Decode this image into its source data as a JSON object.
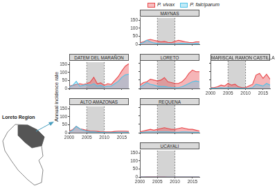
{
  "y_label": "Annual incidence rate",
  "map": {
    "label": "Loreto Region"
  },
  "chart_data": [
    {
      "type": "area",
      "title": "MAYNAS",
      "legend": "top",
      "tick_labels": "y",
      "grid": false,
      "x": [
        2000,
        2001,
        2002,
        2003,
        2004,
        2005,
        2006,
        2007,
        2008,
        2009,
        2010,
        2011,
        2012,
        2013,
        2014,
        2015,
        2016,
        2017
      ],
      "xlim": [
        2000,
        2017
      ],
      "xticks": [
        2000,
        2005,
        2010,
        2015
      ],
      "ylim": [
        0,
        165
      ],
      "yticks": [
        0,
        50,
        100,
        150
      ],
      "highlight": [
        2005,
        2010
      ],
      "series": [
        {
          "name": "P. vivax",
          "color": "#e8474a",
          "values": [
            10,
            15,
            25,
            30,
            25,
            20,
            15,
            18,
            12,
            10,
            18,
            25,
            20,
            15,
            12,
            10,
            15,
            15
          ]
        },
        {
          "name": "P. falciparum",
          "color": "#4fc3e8",
          "values": [
            5,
            10,
            25,
            15,
            8,
            5,
            3,
            3,
            2,
            2,
            3,
            5,
            6,
            5,
            4,
            3,
            5,
            4
          ]
        }
      ]
    },
    {
      "type": "area",
      "title": "DATEM DEL MARAÑON",
      "tick_labels": "y",
      "grid": false,
      "x": [
        2000,
        2001,
        2002,
        2003,
        2004,
        2005,
        2006,
        2007,
        2008,
        2009,
        2010,
        2011,
        2012,
        2013,
        2014,
        2015,
        2016,
        2017
      ],
      "xlim": [
        2000,
        2017
      ],
      "xticks": [
        2000,
        2005,
        2010,
        2015
      ],
      "ylim": [
        0,
        165
      ],
      "yticks": [
        0,
        50,
        100,
        150
      ],
      "highlight": [
        2005,
        2010
      ],
      "series": [
        {
          "name": "P. vivax",
          "color": "#e8474a",
          "values": [
            15,
            20,
            25,
            30,
            25,
            30,
            40,
            70,
            30,
            35,
            20,
            30,
            25,
            50,
            75,
            110,
            140,
            155
          ]
        },
        {
          "name": "P. falciparum",
          "color": "#4fc3e8",
          "values": [
            10,
            20,
            45,
            15,
            20,
            25,
            20,
            30,
            15,
            20,
            10,
            15,
            15,
            30,
            45,
            70,
            85,
            90
          ]
        }
      ]
    },
    {
      "type": "area",
      "title": "LORETO",
      "tick_labels": false,
      "grid": false,
      "x": [
        2000,
        2001,
        2002,
        2003,
        2004,
        2005,
        2006,
        2007,
        2008,
        2009,
        2010,
        2011,
        2012,
        2013,
        2014,
        2015,
        2016,
        2017
      ],
      "xlim": [
        2000,
        2017
      ],
      "xticks": [
        2000,
        2005,
        2010,
        2015
      ],
      "ylim": [
        0,
        165
      ],
      "yticks": [
        0,
        50,
        100,
        150
      ],
      "highlight": [
        2005,
        2010
      ],
      "series": [
        {
          "name": "P. vivax",
          "color": "#e8474a",
          "values": [
            20,
            35,
            40,
            55,
            50,
            45,
            50,
            65,
            40,
            35,
            30,
            30,
            40,
            60,
            90,
            110,
            100,
            100
          ]
        },
        {
          "name": "P. falciparum",
          "color": "#4fc3e8",
          "values": [
            10,
            20,
            35,
            25,
            20,
            15,
            12,
            12,
            8,
            6,
            5,
            5,
            10,
            20,
            30,
            40,
            45,
            40
          ]
        }
      ]
    },
    {
      "type": "area",
      "title": "MARISCAL RAMON CASTILLA",
      "tick_labels": "x",
      "grid": false,
      "x": [
        2000,
        2001,
        2002,
        2003,
        2004,
        2005,
        2006,
        2007,
        2008,
        2009,
        2010,
        2011,
        2012,
        2013,
        2014,
        2015,
        2016,
        2017
      ],
      "xlim": [
        2000,
        2017
      ],
      "xticks": [
        2000,
        2005,
        2010,
        2015
      ],
      "ylim": [
        0,
        165
      ],
      "yticks": [
        0,
        50,
        100,
        150
      ],
      "highlight": [
        2005,
        2010
      ],
      "series": [
        {
          "name": "P. vivax",
          "color": "#e8474a",
          "values": [
            5,
            5,
            10,
            20,
            15,
            30,
            20,
            25,
            10,
            5,
            5,
            15,
            25,
            80,
            90,
            60,
            85,
            55
          ]
        },
        {
          "name": "P. falciparum",
          "color": "#4fc3e8",
          "values": [
            2,
            2,
            3,
            5,
            3,
            5,
            3,
            3,
            2,
            1,
            1,
            2,
            5,
            25,
            20,
            15,
            30,
            20
          ]
        }
      ]
    },
    {
      "type": "area",
      "title": "ALTO AMAZONAS",
      "grid": false,
      "x": [
        2000,
        2001,
        2002,
        2003,
        2004,
        2005,
        2006,
        2007,
        2008,
        2009,
        2010,
        2011,
        2012,
        2013,
        2014,
        2015,
        2016,
        2017
      ],
      "xlim": [
        2000,
        2017
      ],
      "xticks": [
        2000,
        2005,
        2010,
        2015
      ],
      "ylim": [
        0,
        165
      ],
      "yticks": [
        0,
        50,
        100,
        150
      ],
      "highlight": [
        2005,
        2010
      ],
      "series": [
        {
          "name": "P. vivax",
          "color": "#e8474a",
          "values": [
            10,
            20,
            40,
            25,
            20,
            15,
            10,
            10,
            8,
            5,
            5,
            5,
            5,
            8,
            10,
            10,
            10,
            8
          ]
        },
        {
          "name": "P. falciparum",
          "color": "#4fc3e8",
          "values": [
            5,
            15,
            40,
            25,
            15,
            10,
            5,
            5,
            3,
            2,
            2,
            1,
            1,
            2,
            3,
            3,
            3,
            2
          ]
        }
      ]
    },
    {
      "type": "area",
      "title": "REQUENA",
      "tick_labels": false,
      "grid": false,
      "x": [
        2000,
        2001,
        2002,
        2003,
        2004,
        2005,
        2006,
        2007,
        2008,
        2009,
        2010,
        2011,
        2012,
        2013,
        2014,
        2015,
        2016,
        2017
      ],
      "xlim": [
        2000,
        2017
      ],
      "xticks": [
        2000,
        2005,
        2010,
        2015
      ],
      "ylim": [
        0,
        165
      ],
      "yticks": [
        0,
        50,
        100,
        150
      ],
      "highlight": [
        2005,
        2010
      ],
      "series": [
        {
          "name": "P. vivax",
          "color": "#e8474a",
          "values": [
            5,
            10,
            15,
            20,
            15,
            20,
            25,
            30,
            25,
            20,
            20,
            25,
            30,
            25,
            20,
            20,
            15,
            10
          ]
        },
        {
          "name": "P. falciparum",
          "color": "#4fc3e8",
          "values": [
            2,
            3,
            5,
            5,
            5,
            5,
            5,
            5,
            5,
            3,
            3,
            3,
            5,
            5,
            4,
            3,
            3,
            2
          ]
        }
      ]
    },
    {
      "type": "area",
      "title": "UCAYALI",
      "grid": false,
      "x": [
        2000,
        2001,
        2002,
        2003,
        2004,
        2005,
        2006,
        2007,
        2008,
        2009,
        2010,
        2011,
        2012,
        2013,
        2014,
        2015,
        2016,
        2017
      ],
      "xlim": [
        2000,
        2017
      ],
      "xticks": [
        2000,
        2005,
        2010,
        2015
      ],
      "ylim": [
        0,
        165
      ],
      "yticks": [
        0,
        50,
        100,
        150
      ],
      "highlight": [
        2005,
        2010
      ],
      "series": [
        {
          "name": "P. vivax",
          "color": "#e8474a",
          "values": [
            1,
            1,
            2,
            2,
            2,
            2,
            2,
            2,
            1,
            1,
            1,
            1,
            1,
            1,
            1,
            1,
            1,
            1
          ]
        },
        {
          "name": "P. falciparum",
          "color": "#4fc3e8",
          "values": [
            0,
            0,
            0,
            0,
            0,
            0,
            0,
            0,
            0,
            0,
            0,
            0,
            0,
            0,
            0,
            0,
            0,
            0
          ]
        }
      ]
    }
  ]
}
